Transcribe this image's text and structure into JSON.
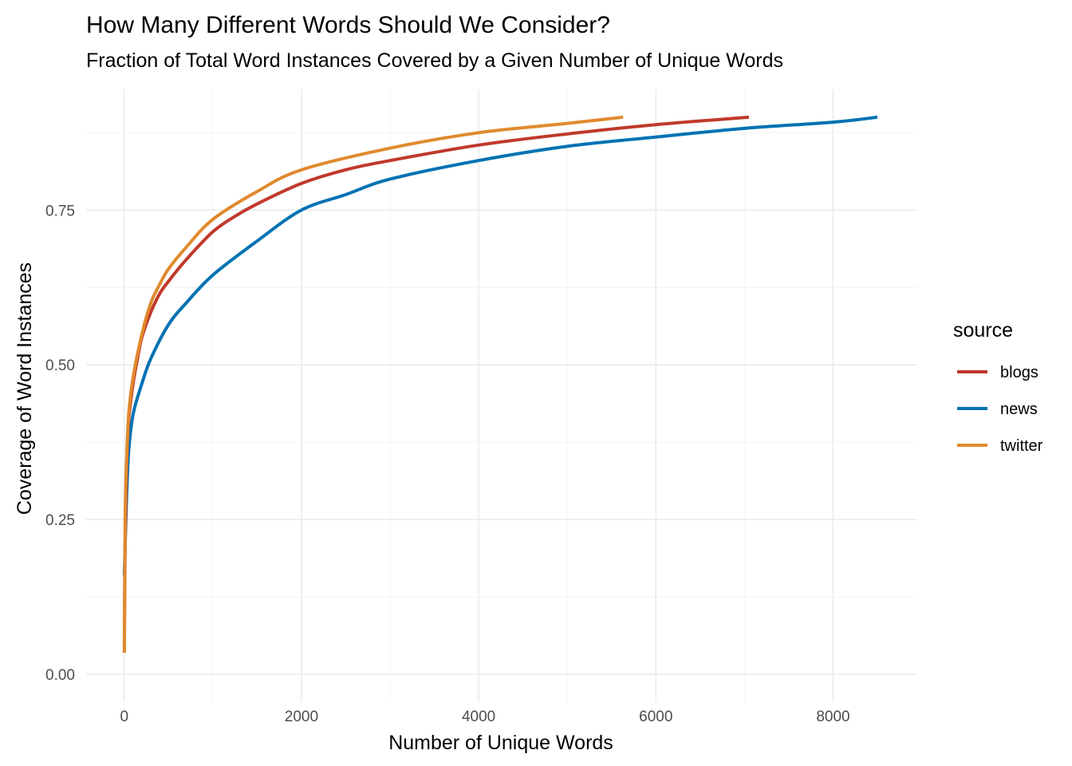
{
  "chart_data": {
    "type": "line",
    "title": "How Many Different Words Should We Consider?",
    "subtitle": "Fraction of Total Word Instances Covered by a Given Number of Unique Words",
    "xlabel": "Number of Unique Words",
    "ylabel": "Coverage of Word Instances",
    "xlim": [
      -430,
      8950
    ],
    "ylim": [
      -0.045,
      0.945
    ],
    "x_ticks": [
      0,
      2000,
      4000,
      6000,
      8000
    ],
    "x_tick_labels": [
      "0",
      "2000",
      "4000",
      "6000",
      "8000"
    ],
    "x_minor_ticks": [
      1000,
      3000,
      5000,
      7000
    ],
    "y_ticks": [
      0,
      0.25,
      0.5,
      0.75
    ],
    "y_tick_labels": [
      "0.00",
      "0.25",
      "0.50",
      "0.75"
    ],
    "y_minor_ticks": [
      0.125,
      0.375,
      0.625,
      0.875
    ],
    "grid": true,
    "legend": {
      "title": "source",
      "position": "right"
    },
    "series": [
      {
        "name": "blogs",
        "color": "#c0392b",
        "points": [
          [
            1,
            0.035
          ],
          [
            10,
            0.21
          ],
          [
            25,
            0.33
          ],
          [
            50,
            0.41
          ],
          [
            100,
            0.47
          ],
          [
            150,
            0.51
          ],
          [
            200,
            0.545
          ],
          [
            300,
            0.585
          ],
          [
            400,
            0.615
          ],
          [
            500,
            0.635
          ],
          [
            700,
            0.67
          ],
          [
            1000,
            0.715
          ],
          [
            1250,
            0.74
          ],
          [
            1500,
            0.76
          ],
          [
            2000,
            0.793
          ],
          [
            2500,
            0.815
          ],
          [
            3000,
            0.83
          ],
          [
            4000,
            0.855
          ],
          [
            5000,
            0.873
          ],
          [
            6000,
            0.888
          ],
          [
            7050,
            0.9
          ]
        ]
      },
      {
        "name": "news",
        "color": "#0072b2",
        "points": [
          [
            1,
            0.16
          ],
          [
            10,
            0.21
          ],
          [
            25,
            0.28
          ],
          [
            50,
            0.36
          ],
          [
            100,
            0.42
          ],
          [
            200,
            0.47
          ],
          [
            300,
            0.51
          ],
          [
            500,
            0.565
          ],
          [
            700,
            0.6
          ],
          [
            1000,
            0.645
          ],
          [
            1500,
            0.7
          ],
          [
            2000,
            0.75
          ],
          [
            2500,
            0.775
          ],
          [
            3000,
            0.8
          ],
          [
            4000,
            0.83
          ],
          [
            5000,
            0.853
          ],
          [
            6000,
            0.868
          ],
          [
            7000,
            0.882
          ],
          [
            8000,
            0.892
          ],
          [
            8500,
            0.9
          ]
        ]
      },
      {
        "name": "twitter",
        "color": "#e08a2e",
        "points": [
          [
            1,
            0.035
          ],
          [
            10,
            0.25
          ],
          [
            25,
            0.34
          ],
          [
            50,
            0.42
          ],
          [
            100,
            0.48
          ],
          [
            200,
            0.55
          ],
          [
            300,
            0.6
          ],
          [
            400,
            0.63
          ],
          [
            500,
            0.655
          ],
          [
            700,
            0.69
          ],
          [
            1000,
            0.735
          ],
          [
            1500,
            0.78
          ],
          [
            2000,
            0.815
          ],
          [
            3000,
            0.85
          ],
          [
            4000,
            0.875
          ],
          [
            5000,
            0.89
          ],
          [
            5630,
            0.9
          ]
        ]
      }
    ]
  }
}
